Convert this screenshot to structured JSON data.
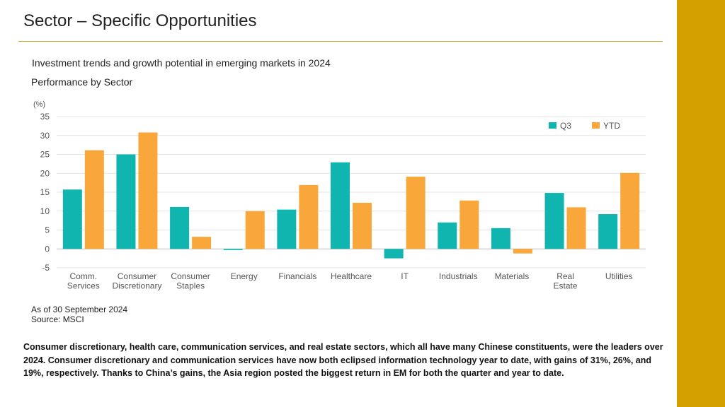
{
  "slide": {
    "title": "Sector – Specific Opportunities",
    "subtitle": "Investment trends and growth potential in emerging markets in 2024",
    "as_of": "As of 30 September 2024",
    "source": "Source: MSCI",
    "body": "Consumer discretionary, health care, communication services, and real estate sectors, which all have many Chinese constituents, were the leaders over 2024. Consumer discretionary and communication services have now both eclipsed information technology year to date, with gains of 31%, 26%, and 19%, respectively. Thanks to China’s gains, the Asia region posted the biggest return in EM for both the quarter and year to date.",
    "accent_color": "#d4a000"
  },
  "chart_data": {
    "type": "bar",
    "title": "Performance by Sector",
    "ylabel": "(%)",
    "xlabel": "",
    "ylim": [
      -5,
      35
    ],
    "yticks": [
      35,
      30,
      25,
      20,
      15,
      10,
      5,
      0,
      -5
    ],
    "grid": true,
    "legend_position": "top-right",
    "categories": [
      [
        "Comm.",
        "Services"
      ],
      [
        "Consumer",
        "Discretionary"
      ],
      [
        "Consumer",
        "Staples"
      ],
      [
        "Energy"
      ],
      [
        "Financials"
      ],
      [
        "Healthcare"
      ],
      [
        "IT"
      ],
      [
        "Industrials"
      ],
      [
        "Materials"
      ],
      [
        "Real",
        "Estate"
      ],
      [
        "Utilities"
      ]
    ],
    "series": [
      {
        "name": "Q3",
        "color": "#10b5b0",
        "values": [
          15.7,
          25.0,
          11.1,
          -0.3,
          10.4,
          22.9,
          -2.5,
          7.0,
          5.5,
          14.8,
          9.2
        ]
      },
      {
        "name": "YTD",
        "color": "#f9a63a",
        "values": [
          26.1,
          30.8,
          3.2,
          10.0,
          16.9,
          12.2,
          19.1,
          12.8,
          -1.2,
          11.0,
          20.1
        ]
      }
    ]
  }
}
